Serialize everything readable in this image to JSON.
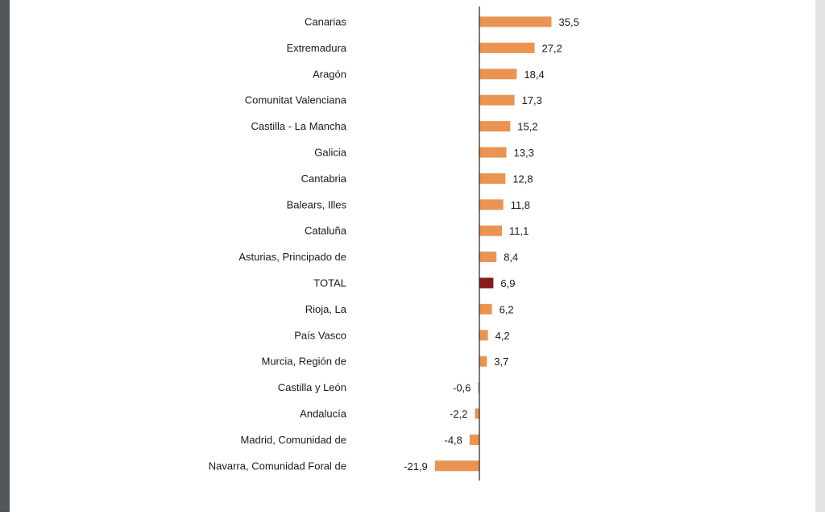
{
  "chart_data": {
    "type": "bar",
    "orientation": "horizontal",
    "categories": [
      "Canarias",
      "Extremadura",
      "Aragón",
      "Comunitat Valenciana",
      "Castilla - La Mancha",
      "Galicia",
      "Cantabria",
      "Balears, Illes",
      "Cataluña",
      "Asturias, Principado de",
      "TOTAL",
      "Rioja, La",
      "País Vasco",
      "Murcia, Región de",
      "Castilla y León",
      "Andalucía",
      "Madrid, Comunidad de",
      "Navarra, Comunidad Foral de"
    ],
    "values": [
      35.5,
      27.2,
      18.4,
      17.3,
      15.2,
      13.3,
      12.8,
      11.8,
      11.1,
      8.4,
      6.9,
      6.2,
      4.2,
      3.7,
      -0.6,
      -2.2,
      -4.8,
      -21.9
    ],
    "value_labels": [
      "35,5",
      "27,2",
      "18,4",
      "17,3",
      "15,2",
      "13,3",
      "12,8",
      "11,8",
      "11,1",
      "8,4",
      "6,9",
      "6,2",
      "4,2",
      "3,7",
      "-0,6",
      "-2,2",
      "-4,8",
      "-21,9"
    ],
    "highlight_category": "TOTAL",
    "colors": {
      "bar": "#eb9451",
      "highlight": "#8b1a1a",
      "axis": "#222222"
    },
    "xlim": [
      -22,
      36
    ],
    "grid": false,
    "legend": "none"
  }
}
